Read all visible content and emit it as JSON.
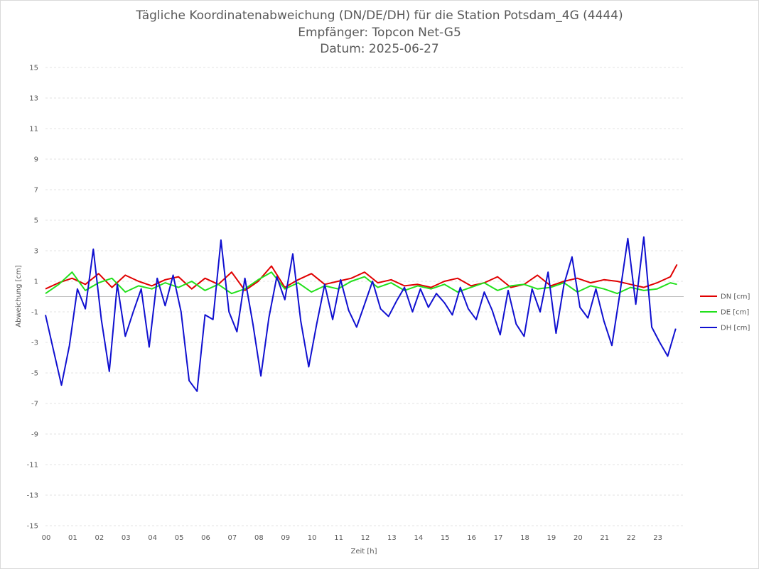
{
  "chart_data": {
    "type": "line",
    "title": "Tägliche Koordinatenabweichung (DN/DE/DH) für die Station Potsdam_4G (4444)",
    "subtitle": "Empfänger: Topcon Net-G5",
    "date_line": "Datum: 2025-06-27",
    "xlabel": "Zeit [h]",
    "ylabel": "Abweichung [cm]",
    "xlim": [
      0,
      24
    ],
    "ylim": [
      -15,
      15
    ],
    "y_ticks": [
      "15",
      "13",
      "11",
      "9",
      "7",
      "5",
      "3",
      "1",
      "-1",
      "-3",
      "-5",
      "-7",
      "-9",
      "-11",
      "-13",
      "-15"
    ],
    "x_ticks": [
      "00",
      "01",
      "02",
      "03",
      "04",
      "05",
      "06",
      "07",
      "08",
      "09",
      "10",
      "11",
      "12",
      "13",
      "14",
      "15",
      "16",
      "17",
      "18",
      "19",
      "20",
      "21",
      "22",
      "23"
    ],
    "grid": "horizontal dashed",
    "legend_position": "right",
    "series": [
      {
        "name": "DN [cm]",
        "color": "#e00000",
        "x": [
          0,
          0.5,
          1,
          1.5,
          2,
          2.5,
          3,
          3.5,
          4,
          4.5,
          5,
          5.5,
          6,
          6.5,
          7,
          7.5,
          8,
          8.5,
          9,
          9.5,
          10,
          10.5,
          11,
          11.5,
          12,
          12.5,
          13,
          13.5,
          14,
          14.5,
          15,
          15.5,
          16,
          16.5,
          17,
          17.5,
          18,
          18.5,
          19,
          19.5,
          20,
          20.5,
          21,
          21.5,
          22,
          22.5,
          23,
          23.5,
          23.75
        ],
        "values": [
          0.5,
          0.9,
          1.2,
          0.8,
          1.5,
          0.6,
          1.4,
          1.0,
          0.7,
          1.1,
          1.3,
          0.5,
          1.2,
          0.8,
          1.6,
          0.4,
          1.0,
          2.0,
          0.6,
          1.1,
          1.5,
          0.8,
          1.0,
          1.2,
          1.6,
          0.9,
          1.1,
          0.7,
          0.8,
          0.6,
          1.0,
          1.2,
          0.7,
          0.9,
          1.3,
          0.6,
          0.8,
          1.4,
          0.7,
          1.0,
          1.2,
          0.9,
          1.1,
          1.0,
          0.8,
          0.6,
          0.9,
          1.3,
          2.1
        ]
      },
      {
        "name": "DE [cm]",
        "color": "#22e01c",
        "x": [
          0,
          0.5,
          1,
          1.5,
          2,
          2.5,
          3,
          3.5,
          4,
          4.5,
          5,
          5.5,
          6,
          6.5,
          7,
          7.5,
          8,
          8.5,
          9,
          9.5,
          10,
          10.5,
          11,
          11.5,
          12,
          12.5,
          13,
          13.5,
          14,
          14.5,
          15,
          15.5,
          16,
          16.5,
          17,
          17.5,
          18,
          18.5,
          19,
          19.5,
          20,
          20.5,
          21,
          21.5,
          22,
          22.5,
          23,
          23.5,
          23.75
        ],
        "values": [
          0.2,
          0.8,
          1.6,
          0.4,
          0.9,
          1.2,
          0.3,
          0.7,
          0.5,
          0.9,
          0.6,
          1.0,
          0.4,
          0.8,
          0.2,
          0.5,
          1.1,
          1.6,
          0.5,
          0.9,
          0.3,
          0.7,
          0.5,
          1.0,
          1.3,
          0.6,
          0.9,
          0.4,
          0.7,
          0.5,
          0.8,
          0.3,
          0.6,
          0.9,
          0.4,
          0.7,
          0.8,
          0.5,
          0.6,
          0.9,
          0.3,
          0.7,
          0.5,
          0.2,
          0.6,
          0.4,
          0.5,
          0.9,
          0.8
        ]
      },
      {
        "name": "DH [cm]",
        "color": "#1010d0",
        "x": [
          0,
          0.3,
          0.6,
          0.9,
          1.2,
          1.5,
          1.8,
          2.1,
          2.4,
          2.7,
          3.0,
          3.3,
          3.6,
          3.9,
          4.2,
          4.5,
          4.8,
          5.1,
          5.4,
          5.7,
          6.0,
          6.3,
          6.6,
          6.9,
          7.2,
          7.5,
          7.8,
          8.1,
          8.4,
          8.7,
          9.0,
          9.3,
          9.6,
          9.9,
          10.2,
          10.5,
          10.8,
          11.1,
          11.4,
          11.7,
          12.0,
          12.3,
          12.6,
          12.9,
          13.2,
          13.5,
          13.8,
          14.1,
          14.4,
          14.7,
          15.0,
          15.3,
          15.6,
          15.9,
          16.2,
          16.5,
          16.8,
          17.1,
          17.4,
          17.7,
          18.0,
          18.3,
          18.6,
          18.9,
          19.2,
          19.5,
          19.8,
          20.1,
          20.4,
          20.7,
          21.0,
          21.3,
          21.6,
          21.9,
          22.2,
          22.5,
          22.8,
          23.1,
          23.4,
          23.7
        ],
        "values": [
          -1.2,
          -3.5,
          -5.8,
          -3.2,
          0.5,
          -0.8,
          3.1,
          -1.5,
          -4.9,
          0.8,
          -2.6,
          -1.0,
          0.5,
          -3.3,
          1.2,
          -0.6,
          1.4,
          -1.0,
          -5.5,
          -6.2,
          -1.2,
          -1.5,
          3.7,
          -1.0,
          -2.3,
          1.2,
          -1.8,
          -5.2,
          -1.4,
          1.3,
          -0.2,
          2.8,
          -1.6,
          -4.6,
          -1.8,
          0.8,
          -1.5,
          1.1,
          -0.9,
          -2.0,
          -0.5,
          1.0,
          -0.8,
          -1.3,
          -0.3,
          0.6,
          -1.0,
          0.5,
          -0.7,
          0.2,
          -0.4,
          -1.2,
          0.6,
          -0.8,
          -1.5,
          0.3,
          -0.9,
          -2.5,
          0.4,
          -1.8,
          -2.6,
          0.5,
          -1.0,
          1.6,
          -2.4,
          0.8,
          2.6,
          -0.7,
          -1.4,
          0.5,
          -1.6,
          -3.2,
          0.2,
          3.8,
          -0.5,
          3.9,
          -2.0,
          -3.0,
          -3.9,
          -2.1
        ]
      }
    ]
  }
}
